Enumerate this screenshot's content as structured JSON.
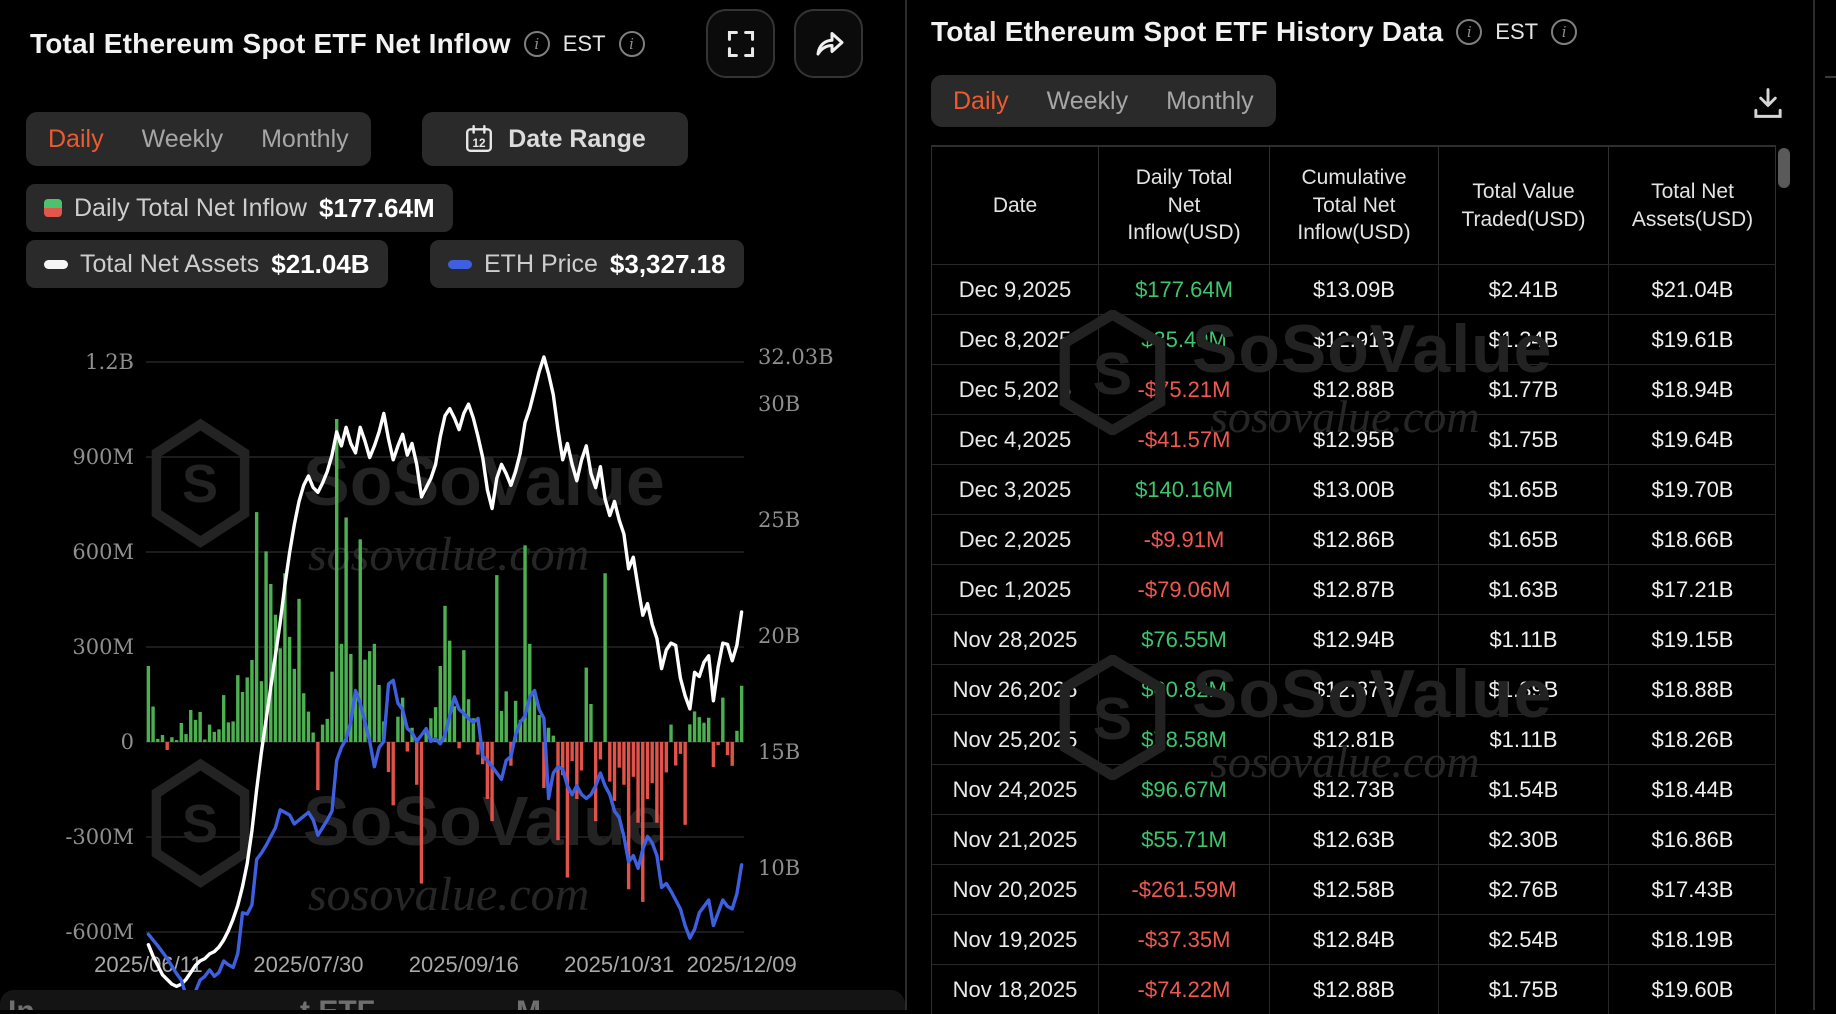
{
  "left_panel": {
    "title": "Total Ethereum Spot ETF Net Inflow",
    "est_label": "EST",
    "tabs": [
      "Daily",
      "Weekly",
      "Monthly"
    ],
    "active_tab": "Daily",
    "date_range_label": "Date Range",
    "legend": [
      {
        "label": "Daily Total Net Inflow",
        "value": "$177.64M"
      },
      {
        "label": "Total Net Assets",
        "value": "$21.04B"
      },
      {
        "label": "ETH Price",
        "value": "$3,327.18"
      }
    ],
    "bottom_bar_fragments": [
      "In",
      "t ETF",
      "M"
    ]
  },
  "right_panel": {
    "title": "Total Ethereum Spot ETF History Data",
    "est_label": "EST",
    "tabs": [
      "Daily",
      "Weekly",
      "Monthly"
    ],
    "active_tab": "Daily",
    "table": {
      "columns": [
        {
          "lines": [
            "Date"
          ]
        },
        {
          "lines": [
            "Daily Total",
            "Net",
            "Inflow(USD)"
          ]
        },
        {
          "lines": [
            "Cumulative",
            "Total Net",
            "Inflow(USD)"
          ]
        },
        {
          "lines": [
            "Total Value",
            "Traded(USD)"
          ]
        },
        {
          "lines": [
            "Total Net",
            "Assets(USD)"
          ]
        }
      ],
      "rows": [
        [
          "Dec 9,2025",
          "$177.64M",
          "$13.09B",
          "$2.41B",
          "$21.04B"
        ],
        [
          "Dec 8,2025",
          "$35.49M",
          "$12.91B",
          "$1.34B",
          "$19.61B"
        ],
        [
          "Dec 5,2025",
          "-$75.21M",
          "$12.88B",
          "$1.77B",
          "$18.94B"
        ],
        [
          "Dec 4,2025",
          "-$41.57M",
          "$12.95B",
          "$1.75B",
          "$19.64B"
        ],
        [
          "Dec 3,2025",
          "$140.16M",
          "$13.00B",
          "$1.65B",
          "$19.70B"
        ],
        [
          "Dec 2,2025",
          "-$9.91M",
          "$12.86B",
          "$1.65B",
          "$18.66B"
        ],
        [
          "Dec 1,2025",
          "-$79.06M",
          "$12.87B",
          "$1.63B",
          "$17.21B"
        ],
        [
          "Nov 28,2025",
          "$76.55M",
          "$12.94B",
          "$1.11B",
          "$19.15B"
        ],
        [
          "Nov 26,2025",
          "$60.82M",
          "$12.87B",
          "$1.39B",
          "$18.88B"
        ],
        [
          "Nov 25,2025",
          "$78.58M",
          "$12.81B",
          "$1.11B",
          "$18.26B"
        ],
        [
          "Nov 24,2025",
          "$96.67M",
          "$12.73B",
          "$1.54B",
          "$18.44B"
        ],
        [
          "Nov 21,2025",
          "$55.71M",
          "$12.63B",
          "$2.30B",
          "$16.86B"
        ],
        [
          "Nov 20,2025",
          "-$261.59M",
          "$12.58B",
          "$2.76B",
          "$17.43B"
        ],
        [
          "Nov 19,2025",
          "-$37.35M",
          "$12.84B",
          "$2.54B",
          "$18.19B"
        ],
        [
          "Nov 18,2025",
          "-$74.22M",
          "$12.88B",
          "$1.75B",
          "$19.60B"
        ]
      ]
    }
  },
  "watermark": {
    "brand": "SoSoValue",
    "domain": "sosovalue.com"
  },
  "colors": {
    "accent_orange": "#ec5b2f",
    "bar_positive": "#4caf50",
    "bar_negative": "#e0534a",
    "line_net_assets": "#ffffff",
    "line_eth_price": "#3e5fdf",
    "table_positive": "#3fc46d",
    "table_negative": "#ee5a52",
    "gridline": "#2e2e2e",
    "axis_text": "#8f8f8f"
  },
  "chart_data": {
    "type": "combo",
    "x_tick_labels": [
      "2025/06/11",
      "2025/07/30",
      "2025/09/16",
      "2025/10/31",
      "2025/12/09"
    ],
    "x_tick_indices": [
      0,
      34,
      67,
      100,
      126
    ],
    "left_axis": {
      "unit": "M USD",
      "tick_values": [
        1200,
        900,
        600,
        300,
        0,
        -300,
        -600
      ],
      "tick_labels": [
        "1.2B",
        "900M",
        "600M",
        "300M",
        "0",
        "-300M",
        "-600M"
      ]
    },
    "right_axis": {
      "unit": "B USD",
      "tick_values": [
        32.03,
        30,
        25,
        20,
        15,
        10
      ],
      "tick_labels": [
        "32.03B",
        "30B",
        "25B",
        "20B",
        "15B",
        "10B"
      ]
    },
    "series": [
      {
        "name": "Daily Total Net Inflow",
        "type": "bar",
        "unit": "M USD",
        "values": [
          240,
          112,
          10,
          22,
          -25,
          15,
          6,
          60,
          25,
          101,
          70,
          95,
          8,
          55,
          32,
          40,
          148,
          62,
          65,
          211,
          158,
          204,
          259,
          726,
          192,
          602,
          499,
          402,
          296,
          533,
          332,
          231,
          452,
          154,
          96,
          30,
          -152,
          55,
          73,
          222,
          1020,
          310,
          709,
          278,
          155,
          640,
          260,
          287,
          310,
          180,
          65,
          -95,
          -200,
          80,
          140,
          -30,
          45,
          -135,
          -447,
          30,
          75,
          110,
          240,
          430,
          320,
          113,
          -20,
          290,
          135,
          75,
          -40,
          -70,
          -180,
          -250,
          527,
          98,
          160,
          -75,
          130,
          70,
          621,
          310,
          165,
          85,
          -145,
          45,
          20,
          -310,
          -105,
          -428,
          -60,
          -180,
          -90,
          235,
          120,
          -250,
          -55,
          533,
          -125,
          -186,
          -81,
          -135,
          -465,
          -110,
          -255,
          -505,
          -180,
          -130,
          -255,
          -374,
          -96,
          55,
          -74.22,
          -37.35,
          -261.59,
          55.71,
          96.67,
          78.58,
          60.82,
          76.55,
          -79.06,
          -9.91,
          140.16,
          -41.57,
          -75.21,
          35.49,
          177.64
        ]
      },
      {
        "name": "Total Net Assets",
        "type": "line",
        "unit": "B USD",
        "values": [
          6.7,
          6.2,
          5.8,
          5.4,
          5.2,
          5.0,
          4.9,
          5.0,
          5.2,
          5.5,
          5.8,
          6.0,
          6.1,
          6.3,
          6.4,
          6.6,
          6.9,
          7.3,
          7.8,
          8.4,
          9.2,
          10.2,
          11.6,
          13.4,
          15.0,
          16.4,
          17.8,
          19.2,
          20.6,
          22.2,
          23.6,
          24.8,
          25.8,
          26.5,
          26.9,
          26.4,
          26.2,
          26.6,
          27.1,
          27.8,
          28.8,
          28.2,
          29.0,
          28.3,
          27.9,
          29.0,
          28.4,
          27.7,
          28.2,
          28.8,
          29.6,
          28.5,
          27.6,
          28.2,
          28.7,
          27.8,
          28.3,
          27.4,
          26.0,
          26.4,
          26.8,
          27.4,
          28.6,
          29.5,
          29.8,
          29.4,
          28.9,
          29.6,
          30.0,
          29.4,
          28.6,
          27.7,
          26.3,
          25.5,
          26.8,
          27.4,
          27.0,
          26.5,
          27.1,
          27.9,
          29.2,
          29.8,
          30.6,
          31.4,
          32.03,
          31.3,
          30.4,
          28.9,
          27.6,
          28.3,
          27.4,
          26.7,
          27.6,
          28.2,
          27.0,
          26.4,
          27.3,
          25.9,
          25.2,
          25.8,
          25.0,
          24.4,
          22.9,
          23.4,
          22.1,
          20.9,
          21.4,
          20.5,
          19.9,
          18.6,
          19.4,
          19.7,
          19.6,
          18.19,
          17.43,
          16.86,
          18.44,
          18.26,
          18.88,
          19.15,
          17.21,
          18.66,
          19.7,
          19.64,
          18.94,
          19.61,
          21.04
        ]
      },
      {
        "name": "ETH Price",
        "type": "line",
        "unit": "USD",
        "values": [
          2780,
          2735,
          2690,
          2640,
          2590,
          2530,
          2470,
          2420,
          2300,
          2240,
          2330,
          2420,
          2450,
          2500,
          2450,
          2480,
          2570,
          2540,
          2520,
          2630,
          2950,
          2940,
          3010,
          3370,
          3420,
          3480,
          3550,
          3620,
          3760,
          3740,
          3720,
          3650,
          3680,
          3710,
          3740,
          3680,
          3560,
          3620,
          3680,
          3750,
          4150,
          4250,
          4320,
          4450,
          4700,
          4600,
          4450,
          4300,
          4100,
          4250,
          4300,
          4750,
          4780,
          4600,
          4550,
          4400,
          4370,
          4300,
          4350,
          4400,
          4300,
          4320,
          4280,
          4350,
          4500,
          4650,
          4550,
          4520,
          4480,
          4450,
          4480,
          4180,
          4150,
          4100,
          4050,
          4000,
          4150,
          4180,
          4350,
          4450,
          4500,
          4650,
          4700,
          4550,
          4480,
          3850,
          4050,
          4100,
          4080,
          3950,
          3880,
          3950,
          3880,
          3850,
          3880,
          3950,
          4050,
          3950,
          3880,
          3750,
          3700,
          3550,
          3350,
          3400,
          3300,
          3450,
          3550,
          3500,
          3400,
          3150,
          3180,
          3120,
          3050,
          2980,
          2850,
          2750,
          2820,
          2950,
          3000,
          3050,
          2850,
          2950,
          3050,
          3000,
          2980,
          3100,
          3327.18
        ]
      }
    ]
  }
}
